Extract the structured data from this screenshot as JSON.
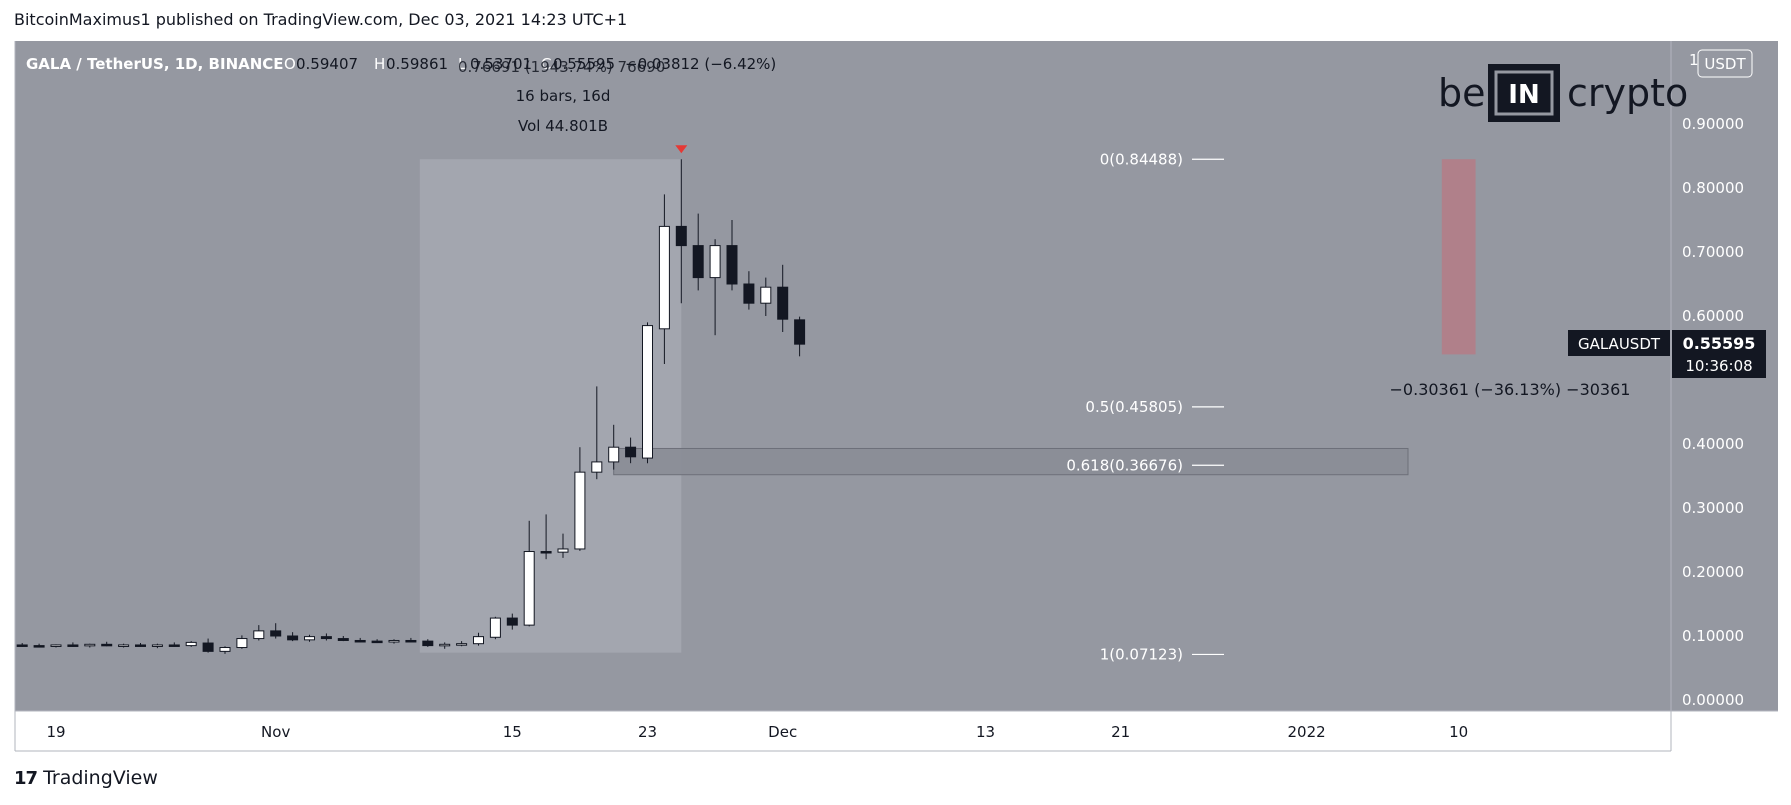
{
  "header": {
    "publisher_line": "BitcoinMaximus1 published on TradingView.com, Dec 03, 2021 14:23 UTC+1"
  },
  "symbol": {
    "title": "GALA / TetherUS, 1D, BINANCE",
    "open_label": "O",
    "open": "0.59407",
    "high_label": "H",
    "high": "0.59861",
    "low_label": "L",
    "low": "0.53701",
    "close_label": "C",
    "close": "0.55595",
    "change": "−0.03812 (−6.42%)",
    "overlap_text": "0.76691 (1943.74%) 76690"
  },
  "range_measure": {
    "bars": "16 bars, 16d",
    "vol": "Vol 44.801B"
  },
  "currency_badge": "USDT",
  "logo": {
    "left": "be",
    "middle": "IN",
    "right": "crypto"
  },
  "price_tag": {
    "ticker": "GALAUSDT",
    "price": "0.55595",
    "countdown": "10:36:08"
  },
  "measure_text": "−0.30361 (−36.13%) −30361",
  "footer": {
    "brand": "TradingView"
  },
  "colors": {
    "plot_bg": "#9598a1",
    "highlight": "#a3a6af",
    "target_box": "#b0808a",
    "up": "#ffffff",
    "down": "#131722",
    "marker": "#e53935"
  },
  "chart_data": {
    "type": "candlestick",
    "title": "GALA / TetherUS, 1D, BINANCE",
    "ylim": [
      0,
      1.0
    ],
    "y_ticks": [
      {
        "value": 0.0,
        "label": "0.00000"
      },
      {
        "value": 0.1,
        "label": "0.10000"
      },
      {
        "value": 0.2,
        "label": "0.20000"
      },
      {
        "value": 0.3,
        "label": "0.30000"
      },
      {
        "value": 0.4,
        "label": "0.40000"
      },
      {
        "value": 0.5,
        "label": "0.50000"
      },
      {
        "value": 0.6,
        "label": "0.60000"
      },
      {
        "value": 0.7,
        "label": "0.70000"
      },
      {
        "value": 0.8,
        "label": "0.80000"
      },
      {
        "value": 0.9,
        "label": "0.90000"
      },
      {
        "value": 1.0,
        "label": "1"
      }
    ],
    "x_ticks": [
      {
        "day": 0,
        "label": "19"
      },
      {
        "day": 13,
        "label": "Nov"
      },
      {
        "day": 27,
        "label": "15"
      },
      {
        "day": 35,
        "label": "23"
      },
      {
        "day": 43,
        "label": "Dec"
      },
      {
        "day": 55,
        "label": "13"
      },
      {
        "day": 63,
        "label": "21"
      },
      {
        "day": 74,
        "label": "2022"
      },
      {
        "day": 83,
        "label": "10"
      }
    ],
    "candles": [
      {
        "day": -2,
        "o": 0.086,
        "h": 0.089,
        "l": 0.083,
        "c": 0.085
      },
      {
        "day": -1,
        "o": 0.085,
        "h": 0.088,
        "l": 0.082,
        "c": 0.084
      },
      {
        "day": 0,
        "o": 0.084,
        "h": 0.087,
        "l": 0.082,
        "c": 0.086
      },
      {
        "day": 1,
        "o": 0.086,
        "h": 0.09,
        "l": 0.083,
        "c": 0.085
      },
      {
        "day": 2,
        "o": 0.085,
        "h": 0.088,
        "l": 0.082,
        "c": 0.087
      },
      {
        "day": 3,
        "o": 0.087,
        "h": 0.091,
        "l": 0.084,
        "c": 0.085
      },
      {
        "day": 4,
        "o": 0.085,
        "h": 0.088,
        "l": 0.082,
        "c": 0.086
      },
      {
        "day": 5,
        "o": 0.086,
        "h": 0.089,
        "l": 0.083,
        "c": 0.084
      },
      {
        "day": 6,
        "o": 0.084,
        "h": 0.088,
        "l": 0.081,
        "c": 0.086
      },
      {
        "day": 7,
        "o": 0.086,
        "h": 0.09,
        "l": 0.083,
        "c": 0.085
      },
      {
        "day": 8,
        "o": 0.085,
        "h": 0.092,
        "l": 0.083,
        "c": 0.09
      },
      {
        "day": 9,
        "o": 0.089,
        "h": 0.096,
        "l": 0.074,
        "c": 0.076
      },
      {
        "day": 10,
        "o": 0.076,
        "h": 0.084,
        "l": 0.072,
        "c": 0.082
      },
      {
        "day": 11,
        "o": 0.082,
        "h": 0.101,
        "l": 0.08,
        "c": 0.096
      },
      {
        "day": 12,
        "o": 0.096,
        "h": 0.117,
        "l": 0.093,
        "c": 0.108
      },
      {
        "day": 13,
        "o": 0.108,
        "h": 0.12,
        "l": 0.096,
        "c": 0.1
      },
      {
        "day": 14,
        "o": 0.1,
        "h": 0.106,
        "l": 0.092,
        "c": 0.094
      },
      {
        "day": 15,
        "o": 0.094,
        "h": 0.102,
        "l": 0.091,
        "c": 0.099
      },
      {
        "day": 16,
        "o": 0.099,
        "h": 0.104,
        "l": 0.093,
        "c": 0.096
      },
      {
        "day": 17,
        "o": 0.096,
        "h": 0.1,
        "l": 0.092,
        "c": 0.093
      },
      {
        "day": 18,
        "o": 0.093,
        "h": 0.097,
        "l": 0.09,
        "c": 0.092
      },
      {
        "day": 19,
        "o": 0.092,
        "h": 0.095,
        "l": 0.089,
        "c": 0.091
      },
      {
        "day": 20,
        "o": 0.091,
        "h": 0.095,
        "l": 0.088,
        "c": 0.093
      },
      {
        "day": 21,
        "o": 0.093,
        "h": 0.097,
        "l": 0.09,
        "c": 0.092
      },
      {
        "day": 22,
        "o": 0.092,
        "h": 0.095,
        "l": 0.083,
        "c": 0.085
      },
      {
        "day": 23,
        "o": 0.085,
        "h": 0.09,
        "l": 0.08,
        "c": 0.087
      },
      {
        "day": 24,
        "o": 0.087,
        "h": 0.092,
        "l": 0.084,
        "c": 0.088
      },
      {
        "day": 25,
        "o": 0.088,
        "h": 0.105,
        "l": 0.085,
        "c": 0.099
      },
      {
        "day": 26,
        "o": 0.098,
        "h": 0.13,
        "l": 0.095,
        "c": 0.128
      },
      {
        "day": 27,
        "o": 0.128,
        "h": 0.135,
        "l": 0.11,
        "c": 0.117
      },
      {
        "day": 28,
        "o": 0.117,
        "h": 0.28,
        "l": 0.115,
        "c": 0.232
      },
      {
        "day": 29,
        "o": 0.232,
        "h": 0.29,
        "l": 0.22,
        "c": 0.231
      },
      {
        "day": 30,
        "o": 0.231,
        "h": 0.26,
        "l": 0.222,
        "c": 0.236
      },
      {
        "day": 31,
        "o": 0.236,
        "h": 0.395,
        "l": 0.233,
        "c": 0.356
      },
      {
        "day": 32,
        "o": 0.356,
        "h": 0.49,
        "l": 0.345,
        "c": 0.372
      },
      {
        "day": 33,
        "o": 0.372,
        "h": 0.43,
        "l": 0.36,
        "c": 0.395
      },
      {
        "day": 34,
        "o": 0.395,
        "h": 0.41,
        "l": 0.37,
        "c": 0.38
      },
      {
        "day": 35,
        "o": 0.378,
        "h": 0.59,
        "l": 0.37,
        "c": 0.585
      },
      {
        "day": 36,
        "o": 0.58,
        "h": 0.79,
        "l": 0.525,
        "c": 0.74
      },
      {
        "day": 37,
        "o": 0.74,
        "h": 0.845,
        "l": 0.62,
        "c": 0.71
      },
      {
        "day": 38,
        "o": 0.71,
        "h": 0.76,
        "l": 0.64,
        "c": 0.66
      },
      {
        "day": 39,
        "o": 0.66,
        "h": 0.72,
        "l": 0.57,
        "c": 0.71
      },
      {
        "day": 40,
        "o": 0.71,
        "h": 0.75,
        "l": 0.64,
        "c": 0.65
      },
      {
        "day": 41,
        "o": 0.65,
        "h": 0.67,
        "l": 0.61,
        "c": 0.62
      },
      {
        "day": 42,
        "o": 0.62,
        "h": 0.66,
        "l": 0.6,
        "c": 0.645
      },
      {
        "day": 43,
        "o": 0.645,
        "h": 0.68,
        "l": 0.575,
        "c": 0.595
      },
      {
        "day": 44,
        "o": 0.594,
        "h": 0.599,
        "l": 0.537,
        "c": 0.556
      }
    ],
    "fib_levels": [
      {
        "label": "0(0.84488)",
        "value": 0.84488
      },
      {
        "label": "0.5(0.45805)",
        "value": 0.45805
      },
      {
        "label": "0.618(0.36676)",
        "value": 0.36676
      },
      {
        "label": "1(0.07123)",
        "value": 0.07123
      }
    ],
    "highlight_range": {
      "start_day": 22,
      "end_day": 37,
      "low": 0.074,
      "high": 0.845
    },
    "support_zone": {
      "start_day": 33,
      "end_day": 80,
      "low": 0.352,
      "high": 0.393
    },
    "target_box": {
      "start_day": 82,
      "end_day": 84,
      "low": 0.54,
      "high": 0.845
    },
    "marker_day": 37
  }
}
